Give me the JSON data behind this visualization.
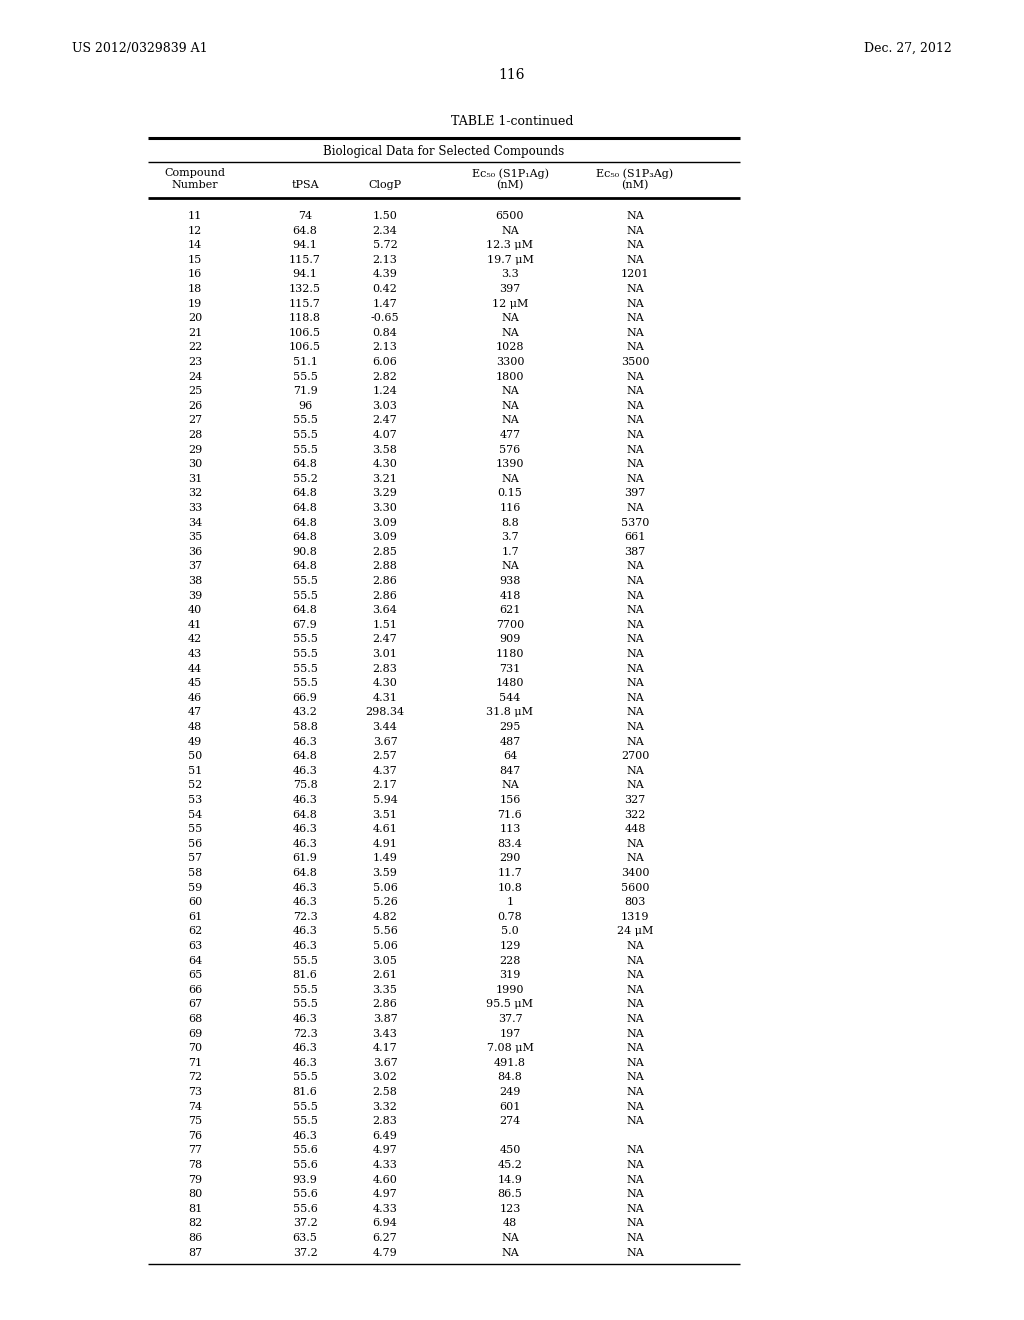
{
  "header_left": "US 2012/0329839 A1",
  "header_right": "Dec. 27, 2012",
  "page_number": "116",
  "table_title": "TABLE 1-continued",
  "subtitle": "Biological Data for Selected Compounds",
  "rows": [
    [
      "11",
      "74",
      "1.50",
      "6500",
      "NA"
    ],
    [
      "12",
      "64.8",
      "2.34",
      "NA",
      "NA"
    ],
    [
      "14",
      "94.1",
      "5.72",
      "12.3 μM",
      "NA"
    ],
    [
      "15",
      "115.7",
      "2.13",
      "19.7 μM",
      "NA"
    ],
    [
      "16",
      "94.1",
      "4.39",
      "3.3",
      "1201"
    ],
    [
      "18",
      "132.5",
      "0.42",
      "397",
      "NA"
    ],
    [
      "19",
      "115.7",
      "1.47",
      "12 μM",
      "NA"
    ],
    [
      "20",
      "118.8",
      "-0.65",
      "NA",
      "NA"
    ],
    [
      "21",
      "106.5",
      "0.84",
      "NA",
      "NA"
    ],
    [
      "22",
      "106.5",
      "2.13",
      "1028",
      "NA"
    ],
    [
      "23",
      "51.1",
      "6.06",
      "3300",
      "3500"
    ],
    [
      "24",
      "55.5",
      "2.82",
      "1800",
      "NA"
    ],
    [
      "25",
      "71.9",
      "1.24",
      "NA",
      "NA"
    ],
    [
      "26",
      "96",
      "3.03",
      "NA",
      "NA"
    ],
    [
      "27",
      "55.5",
      "2.47",
      "NA",
      "NA"
    ],
    [
      "28",
      "55.5",
      "4.07",
      "477",
      "NA"
    ],
    [
      "29",
      "55.5",
      "3.58",
      "576",
      "NA"
    ],
    [
      "30",
      "64.8",
      "4.30",
      "1390",
      "NA"
    ],
    [
      "31",
      "55.2",
      "3.21",
      "NA",
      "NA"
    ],
    [
      "32",
      "64.8",
      "3.29",
      "0.15",
      "397"
    ],
    [
      "33",
      "64.8",
      "3.30",
      "116",
      "NA"
    ],
    [
      "34",
      "64.8",
      "3.09",
      "8.8",
      "5370"
    ],
    [
      "35",
      "64.8",
      "3.09",
      "3.7",
      "661"
    ],
    [
      "36",
      "90.8",
      "2.85",
      "1.7",
      "387"
    ],
    [
      "37",
      "64.8",
      "2.88",
      "NA",
      "NA"
    ],
    [
      "38",
      "55.5",
      "2.86",
      "938",
      "NA"
    ],
    [
      "39",
      "55.5",
      "2.86",
      "418",
      "NA"
    ],
    [
      "40",
      "64.8",
      "3.64",
      "621",
      "NA"
    ],
    [
      "41",
      "67.9",
      "1.51",
      "7700",
      "NA"
    ],
    [
      "42",
      "55.5",
      "2.47",
      "909",
      "NA"
    ],
    [
      "43",
      "55.5",
      "3.01",
      "1180",
      "NA"
    ],
    [
      "44",
      "55.5",
      "2.83",
      "731",
      "NA"
    ],
    [
      "45",
      "55.5",
      "4.30",
      "1480",
      "NA"
    ],
    [
      "46",
      "66.9",
      "4.31",
      "544",
      "NA"
    ],
    [
      "47",
      "43.2",
      "298.34",
      "31.8 μM",
      "NA"
    ],
    [
      "48",
      "58.8",
      "3.44",
      "295",
      "NA"
    ],
    [
      "49",
      "46.3",
      "3.67",
      "487",
      "NA"
    ],
    [
      "50",
      "64.8",
      "2.57",
      "64",
      "2700"
    ],
    [
      "51",
      "46.3",
      "4.37",
      "847",
      "NA"
    ],
    [
      "52",
      "75.8",
      "2.17",
      "NA",
      "NA"
    ],
    [
      "53",
      "46.3",
      "5.94",
      "156",
      "327"
    ],
    [
      "54",
      "64.8",
      "3.51",
      "71.6",
      "322"
    ],
    [
      "55",
      "46.3",
      "4.61",
      "113",
      "448"
    ],
    [
      "56",
      "46.3",
      "4.91",
      "83.4",
      "NA"
    ],
    [
      "57",
      "61.9",
      "1.49",
      "290",
      "NA"
    ],
    [
      "58",
      "64.8",
      "3.59",
      "11.7",
      "3400"
    ],
    [
      "59",
      "46.3",
      "5.06",
      "10.8",
      "5600"
    ],
    [
      "60",
      "46.3",
      "5.26",
      "1",
      "803"
    ],
    [
      "61",
      "72.3",
      "4.82",
      "0.78",
      "1319"
    ],
    [
      "62",
      "46.3",
      "5.56",
      "5.0",
      "24 μM"
    ],
    [
      "63",
      "46.3",
      "5.06",
      "129",
      "NA"
    ],
    [
      "64",
      "55.5",
      "3.05",
      "228",
      "NA"
    ],
    [
      "65",
      "81.6",
      "2.61",
      "319",
      "NA"
    ],
    [
      "66",
      "55.5",
      "3.35",
      "1990",
      "NA"
    ],
    [
      "67",
      "55.5",
      "2.86",
      "95.5 μM",
      "NA"
    ],
    [
      "68",
      "46.3",
      "3.87",
      "37.7",
      "NA"
    ],
    [
      "69",
      "72.3",
      "3.43",
      "197",
      "NA"
    ],
    [
      "70",
      "46.3",
      "4.17",
      "7.08 μM",
      "NA"
    ],
    [
      "71",
      "46.3",
      "3.67",
      "491.8",
      "NA"
    ],
    [
      "72",
      "55.5",
      "3.02",
      "84.8",
      "NA"
    ],
    [
      "73",
      "81.6",
      "2.58",
      "249",
      "NA"
    ],
    [
      "74",
      "55.5",
      "3.32",
      "601",
      "NA"
    ],
    [
      "75",
      "55.5",
      "2.83",
      "274",
      "NA"
    ],
    [
      "76",
      "46.3",
      "6.49",
      "",
      ""
    ],
    [
      "77",
      "55.6",
      "4.97",
      "450",
      "NA"
    ],
    [
      "78",
      "55.6",
      "4.33",
      "45.2",
      "NA"
    ],
    [
      "79",
      "93.9",
      "4.60",
      "14.9",
      "NA"
    ],
    [
      "80",
      "55.6",
      "4.97",
      "86.5",
      "NA"
    ],
    [
      "81",
      "55.6",
      "4.33",
      "123",
      "NA"
    ],
    [
      "82",
      "37.2",
      "6.94",
      "48",
      "NA"
    ],
    [
      "86",
      "63.5",
      "6.27",
      "NA",
      "NA"
    ],
    [
      "87",
      "37.2",
      "4.79",
      "NA",
      "NA"
    ]
  ],
  "col_header_line1": [
    "Compound",
    "",
    "",
    "Ec₅₀ (S1P₁Ag)",
    "Ec₅₀ (S1P₃Ag)"
  ],
  "col_header_line2": [
    "Number",
    "tPSA",
    "ClogP",
    "(nM)",
    "(nM)"
  ]
}
